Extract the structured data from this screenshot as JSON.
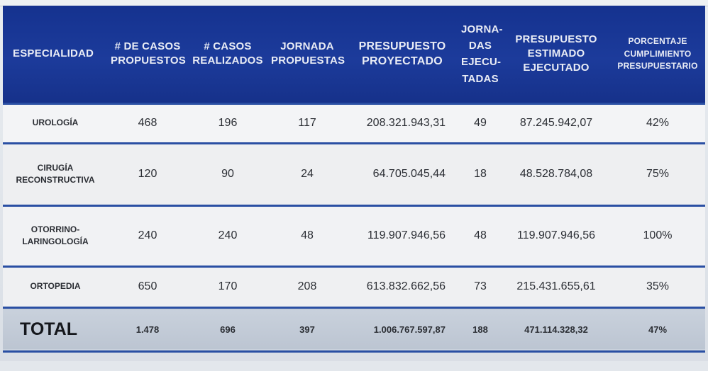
{
  "header": {
    "especialidad": "ESPECIALIDAD",
    "casos_propuestos": [
      "# DE CASOS",
      "PROPUESTOS"
    ],
    "casos_realizados": [
      "# CASOS",
      "REALIZADOS"
    ],
    "jornada_propuestas": [
      "JORNADA",
      "PROPUESTAS"
    ],
    "presupuesto_proyectado": [
      "PRESUPUESTO",
      "PROYECTADO"
    ],
    "jornadas_ejecutadas": [
      "JORNA-",
      "DAS",
      "EJECU-",
      "TADAS"
    ],
    "presupuesto_estimado": [
      "PRESUPUESTO",
      "ESTIMADO",
      "EJECUTADO"
    ],
    "porcentaje": [
      "PORCENTAJE",
      "CUMPLIMIENTO",
      "PRESUPUESTARIO"
    ]
  },
  "rows": [
    {
      "especialidad": [
        "UROLOGÍA"
      ],
      "casos_propuestos": "468",
      "casos_realizados": "196",
      "jornada_propuestas": "117",
      "presupuesto_proyectado": "208.321.943,31",
      "jornadas_ejecutadas": "49",
      "presupuesto_estimado": "87.245.942,07",
      "porcentaje": "42%"
    },
    {
      "especialidad": [
        "CIRUGÍA",
        "RECONSTRUCTIVA"
      ],
      "casos_propuestos": "120",
      "casos_realizados": "90",
      "jornada_propuestas": "24",
      "presupuesto_proyectado": "64.705.045,44",
      "jornadas_ejecutadas": "18",
      "presupuesto_estimado": "48.528.784,08",
      "porcentaje": "75%"
    },
    {
      "especialidad": [
        "OTORRINO-",
        "LARINGOLOGÍA"
      ],
      "casos_propuestos": "240",
      "casos_realizados": "240",
      "jornada_propuestas": "48",
      "presupuesto_proyectado": "119.907.946,56",
      "jornadas_ejecutadas": "48",
      "presupuesto_estimado": "119.907.946,56",
      "porcentaje": "100%"
    },
    {
      "especialidad": [
        "ORTOPEDIA"
      ],
      "casos_propuestos": "650",
      "casos_realizados": "170",
      "jornada_propuestas": "208",
      "presupuesto_proyectado": "613.832.662,56",
      "jornadas_ejecutadas": "73",
      "presupuesto_estimado": "215.431.655,61",
      "porcentaje": "35%"
    }
  ],
  "total": {
    "label": "TOTAL",
    "casos_propuestos": "1.478",
    "casos_realizados": "696",
    "jornada_propuestas": "397",
    "presupuesto_proyectado": "1.006.767.597,87",
    "jornadas_ejecutadas": "188",
    "presupuesto_estimado": "471.114.328,32",
    "porcentaje": "47%"
  },
  "colors": {
    "header_blue": "#1c3b9b",
    "row_divider": "#2a4fa3",
    "total_bg": "#c3ccd8"
  }
}
